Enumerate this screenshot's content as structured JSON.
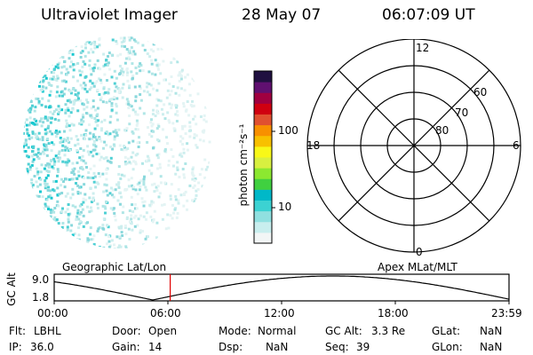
{
  "header": {
    "title": "Ultraviolet Imager",
    "date": "28 May 07",
    "time": "06:07:09 UT"
  },
  "colorbar": {
    "label": "photon cm⁻²s⁻¹",
    "ticks": [
      {
        "value": 100,
        "label": "100"
      },
      {
        "value": 10,
        "label": "10"
      }
    ],
    "colors": [
      "#f2f6f6",
      "#c8eeee",
      "#90e0e0",
      "#3cd2d2",
      "#00b8c8",
      "#40d040",
      "#8ce830",
      "#d8f040",
      "#f8f818",
      "#f8c000",
      "#f89000",
      "#e05030",
      "#d00010",
      "#a00040",
      "#601070",
      "#201040"
    ]
  },
  "polar_plot": {
    "mlt_labels": {
      "top": "12",
      "left": "18",
      "right": "6",
      "bottom": "0"
    },
    "lat_labels": [
      {
        "value": 60,
        "label": "60"
      },
      {
        "value": 70,
        "label": "70"
      },
      {
        "value": 80,
        "label": "80"
      }
    ]
  },
  "timeline": {
    "left_label": "Geographic Lat/Lon",
    "right_label": "Apex MLat/MLT",
    "y_axis_label": "GC Alt",
    "y_ticks": [
      {
        "value": 9.0,
        "label": "9.0"
      },
      {
        "value": 1.8,
        "label": "1.8"
      }
    ],
    "x_ticks": [
      "00:00",
      "06:00",
      "12:00",
      "18:00",
      "23:59"
    ],
    "current_time_hours": 6.12,
    "marker_color": "#e00000"
  },
  "info": {
    "col1": [
      {
        "label": "Flt:",
        "value": "LBHL"
      },
      {
        "label": "IP:",
        "value": "36.0"
      }
    ],
    "col2": [
      {
        "label": "Door:",
        "value": "Open"
      },
      {
        "label": "Gain:",
        "value": "14"
      }
    ],
    "col3": [
      {
        "label": "Mode:",
        "value": "Normal"
      },
      {
        "label": "Dsp:",
        "value": "NaN"
      }
    ],
    "col4": [
      {
        "label": "GC Alt:",
        "value": "3.3 Re"
      },
      {
        "label": "Seq:",
        "value": "39"
      }
    ],
    "col5": [
      {
        "label": "GLat:",
        "value": "NaN"
      },
      {
        "label": "GLon:",
        "value": "NaN"
      }
    ]
  }
}
